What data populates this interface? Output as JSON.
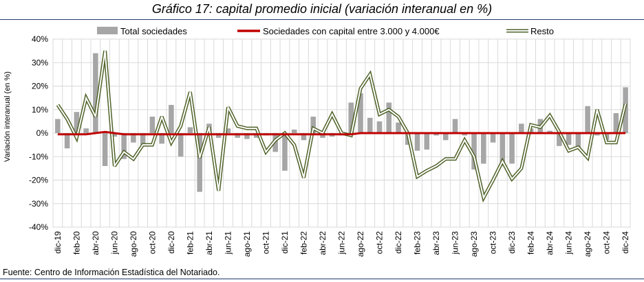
{
  "title": "Gráfico 17: capital promedio inicial (variación interanual en %)",
  "source": "Fuente: Centro de Información Estadística del Notariado.",
  "colors": {
    "bars": "#a6a6a6",
    "red_line": "#c00000",
    "resto_outer": "#4f6228",
    "resto_inner": "#ffffff",
    "grid": "#d9d9d9",
    "rule": "#1f3a6e"
  },
  "chart_data": {
    "type": "bar+line",
    "ylabel": "Variación interanual (en %)",
    "ylim": [
      -40,
      40
    ],
    "yticks": [
      -40,
      -30,
      -20,
      -10,
      0,
      10,
      20,
      30,
      40
    ],
    "ytick_labels": [
      "-40%",
      "-30%",
      "-20%",
      "-10%",
      "0%",
      "10%",
      "20%",
      "30%",
      "40%"
    ],
    "grid": true,
    "legend_position": "top",
    "categories": [
      "dic-19",
      "ene-20",
      "feb-20",
      "mar-20",
      "abr-20",
      "may-20",
      "jun-20",
      "jul-20",
      "ago-20",
      "sep-20",
      "oct-20",
      "nov-20",
      "dic-20",
      "ene-21",
      "feb-21",
      "mar-21",
      "abr-21",
      "may-21",
      "jun-21",
      "jul-21",
      "ago-21",
      "sep-21",
      "oct-21",
      "nov-21",
      "dic-21",
      "ene-22",
      "feb-22",
      "mar-22",
      "abr-22",
      "may-22",
      "jun-22",
      "jul-22",
      "ago-22",
      "sep-22",
      "oct-22",
      "nov-22",
      "dic-22",
      "ene-23",
      "feb-23",
      "mar-23",
      "abr-23",
      "may-23",
      "jun-23",
      "jul-23",
      "ago-23",
      "sep-23",
      "oct-23",
      "nov-23",
      "dic-23",
      "ene-24",
      "feb-24",
      "mar-24",
      "abr-24",
      "may-24",
      "jun-24",
      "jul-24",
      "ago-24",
      "sep-24",
      "oct-24",
      "nov-24",
      "dic-24"
    ],
    "xtick_labels": [
      "dic-19",
      "feb-20",
      "abr-20",
      "jun-20",
      "ago-20",
      "oct-20",
      "dic-20",
      "feb-21",
      "abr-21",
      "jun-21",
      "ago-21",
      "oct-21",
      "dic-21",
      "feb-22",
      "abr-22",
      "jun-22",
      "ago-22",
      "oct-22",
      "dic-22",
      "feb-23",
      "abr-23",
      "jun-23",
      "ago-23",
      "oct-23",
      "dic-23",
      "feb-24",
      "abr-24",
      "jun-24",
      "ago-24",
      "oct-24",
      "dic-24"
    ],
    "series": [
      {
        "name": "Total sociedades",
        "kind": "bar",
        "values": [
          6,
          -6.5,
          9,
          2,
          34,
          -14,
          -1.5,
          -11,
          -4,
          -5,
          7,
          -4.5,
          12,
          -10,
          2.5,
          -25,
          4,
          -2,
          2,
          -2,
          -2.5,
          -2,
          -1,
          -8,
          -16,
          1.5,
          -3,
          7,
          -2,
          -1.5,
          -1,
          13,
          17,
          6.5,
          5,
          13,
          4.5,
          -5,
          -7.5,
          -7,
          -1,
          -3,
          6,
          -1,
          -15.5,
          -13,
          -4,
          -14,
          -13,
          4,
          2,
          6,
          1,
          -5.5,
          -5,
          -7,
          11.5,
          -1,
          -3,
          8.5,
          19.5
        ]
      },
      {
        "name": "Sociedades con capital entre 3.000 y 4.000€",
        "kind": "line",
        "values": [
          -0.5,
          -0.5,
          -0.5,
          -0.5,
          0,
          0.5,
          0,
          -0.5,
          -0.5,
          -0.5,
          -0.5,
          -0.5,
          -0.5,
          -0.5,
          -0.5,
          -0.5,
          -0.5,
          -0.5,
          -0.5,
          -0.5,
          -0.5,
          -0.5,
          -0.5,
          -0.5,
          -0.5,
          -0.5,
          -0.5,
          -0.5,
          -0.5,
          -0.5,
          -0.5,
          -0.5,
          0,
          0,
          0,
          0,
          0,
          0,
          0,
          0,
          0,
          0,
          0,
          0,
          0,
          0,
          0,
          0,
          0,
          0,
          0,
          0,
          0,
          0,
          0,
          0,
          0,
          0,
          0,
          0,
          0
        ]
      },
      {
        "name": "Resto",
        "kind": "double-line",
        "values": [
          12,
          6,
          -2,
          15,
          7,
          35,
          -14,
          -8,
          -11,
          -5,
          -5,
          7,
          -4,
          3,
          17.5,
          -10.5,
          2.5,
          -24.5,
          11,
          3,
          2,
          2,
          -8,
          -3,
          0,
          -5,
          -19,
          2,
          0,
          8,
          0,
          -1,
          19,
          25,
          8,
          10,
          7,
          0,
          -18.5,
          -16,
          -14,
          -11,
          -11,
          -3,
          -10,
          -27.5,
          -20,
          -12,
          -19.5,
          -15,
          3.5,
          2.5,
          7.5,
          0.5,
          -7.5,
          -6,
          -10.5,
          10,
          -4,
          -4,
          12.5
        ]
      }
    ]
  }
}
